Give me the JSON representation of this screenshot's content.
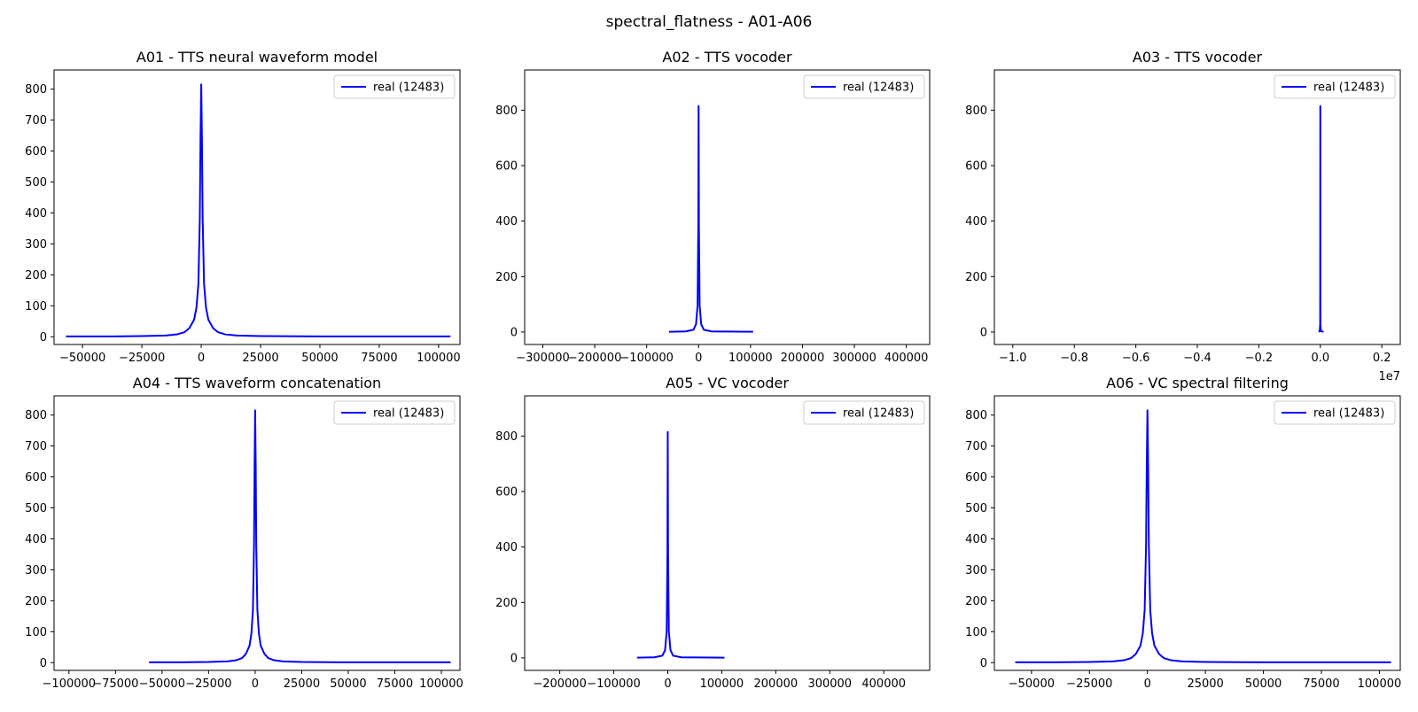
{
  "figure": {
    "suptitle": "spectral_flatness - A01-A06"
  },
  "chart_data": [
    {
      "type": "line",
      "title": "A01 - TTS neural waveform model",
      "xlim": [
        -62000,
        109000
      ],
      "ylim": [
        -25,
        862
      ],
      "xticks": [
        -50000,
        -25000,
        0,
        25000,
        50000,
        75000,
        100000
      ],
      "xticklabels": [
        "−50000",
        "−25000",
        "0",
        "25000",
        "50000",
        "75000",
        "100000"
      ],
      "yticks": [
        0,
        100,
        200,
        300,
        400,
        500,
        600,
        700,
        800
      ],
      "yticklabels": [
        "0",
        "100",
        "200",
        "300",
        "400",
        "500",
        "600",
        "700",
        "800"
      ],
      "offset_text": "",
      "legend": {
        "position": "upper right",
        "entries": [
          "real (12483)"
        ]
      },
      "series": [
        {
          "name": "real (12483)",
          "color": "#0000ff",
          "x": [
            -57000,
            -40000,
            -25000,
            -15000,
            -10000,
            -7000,
            -5000,
            -3000,
            -2000,
            -1200,
            -600,
            -300,
            0,
            300,
            600,
            1200,
            2000,
            3000,
            5000,
            7000,
            10000,
            15000,
            25000,
            50000,
            75000,
            105000
          ],
          "y": [
            1,
            1,
            2,
            4,
            8,
            15,
            28,
            55,
            95,
            170,
            380,
            640,
            815,
            640,
            380,
            170,
            95,
            55,
            28,
            15,
            8,
            4,
            2,
            1,
            1,
            1
          ]
        }
      ]
    },
    {
      "type": "line",
      "title": "A02 - TTS vocoder",
      "xlim": [
        -335000,
        445000
      ],
      "ylim": [
        -45,
        945
      ],
      "xticks": [
        -300000,
        -200000,
        -100000,
        0,
        100000,
        200000,
        300000,
        400000
      ],
      "xticklabels": [
        "−300000",
        "−200000",
        "−100000",
        "0",
        "100000",
        "200000",
        "300000",
        "400000"
      ],
      "yticks": [
        0,
        200,
        400,
        600,
        800
      ],
      "yticklabels": [
        "0",
        "200",
        "400",
        "600",
        "800"
      ],
      "offset_text": "",
      "legend": {
        "position": "upper right",
        "entries": [
          "real (12483)"
        ]
      },
      "series": [
        {
          "name": "real (12483)",
          "color": "#0000ff",
          "x": [
            -57000,
            -25000,
            -10000,
            -5000,
            -2000,
            -600,
            0,
            600,
            2000,
            5000,
            10000,
            25000,
            105000
          ],
          "y": [
            1,
            2,
            8,
            28,
            95,
            380,
            815,
            380,
            95,
            28,
            8,
            2,
            1
          ]
        }
      ]
    },
    {
      "type": "line",
      "title": "A03 - TTS vocoder",
      "xlim": [
        -10600000,
        2600000
      ],
      "ylim": [
        -45,
        945
      ],
      "xticks": [
        -10000000,
        -8000000,
        -6000000,
        -4000000,
        -2000000,
        0,
        2000000
      ],
      "xticklabels": [
        "−1.0",
        "−0.8",
        "−0.6",
        "−0.4",
        "−0.2",
        "0.0",
        "0.2"
      ],
      "yticks": [
        0,
        200,
        400,
        600,
        800
      ],
      "yticklabels": [
        "0",
        "200",
        "400",
        "600",
        "800"
      ],
      "offset_text": "1e7",
      "legend": {
        "position": "upper right",
        "entries": [
          "real (12483)"
        ]
      },
      "series": [
        {
          "name": "real (12483)",
          "color": "#0000ff",
          "x": [
            -57000,
            -20000,
            -5000,
            0,
            5000,
            20000,
            105000
          ],
          "y": [
            1,
            3,
            28,
            815,
            28,
            3,
            1
          ]
        }
      ]
    },
    {
      "type": "line",
      "title": "A04 - TTS waveform concatenation",
      "xlim": [
        -108000,
        110000
      ],
      "ylim": [
        -25,
        862
      ],
      "xticks": [
        -100000,
        -75000,
        -50000,
        -25000,
        0,
        25000,
        50000,
        75000,
        100000
      ],
      "xticklabels": [
        "−100000",
        "−75000",
        "−50000",
        "−25000",
        "0",
        "25000",
        "50000",
        "75000",
        "100000"
      ],
      "yticks": [
        0,
        100,
        200,
        300,
        400,
        500,
        600,
        700,
        800
      ],
      "yticklabels": [
        "0",
        "100",
        "200",
        "300",
        "400",
        "500",
        "600",
        "700",
        "800"
      ],
      "offset_text": "",
      "legend": {
        "position": "upper right",
        "entries": [
          "real (12483)"
        ]
      },
      "series": [
        {
          "name": "real (12483)",
          "color": "#0000ff",
          "x": [
            -57000,
            -40000,
            -25000,
            -15000,
            -10000,
            -7000,
            -5000,
            -3000,
            -2000,
            -1200,
            -600,
            -300,
            0,
            300,
            600,
            1200,
            2000,
            3000,
            5000,
            7000,
            10000,
            15000,
            25000,
            50000,
            75000,
            105000
          ],
          "y": [
            1,
            1,
            2,
            4,
            8,
            15,
            28,
            55,
            95,
            170,
            380,
            640,
            815,
            640,
            380,
            170,
            95,
            55,
            28,
            15,
            8,
            4,
            2,
            1,
            1,
            1
          ]
        }
      ]
    },
    {
      "type": "line",
      "title": "A05 - VC vocoder",
      "xlim": [
        -265000,
        485000
      ],
      "ylim": [
        -45,
        945
      ],
      "xticks": [
        -200000,
        -100000,
        0,
        100000,
        200000,
        300000,
        400000
      ],
      "xticklabels": [
        "−200000",
        "−100000",
        "0",
        "100000",
        "200000",
        "300000",
        "400000"
      ],
      "yticks": [
        0,
        200,
        400,
        600,
        800
      ],
      "yticklabels": [
        "0",
        "200",
        "400",
        "600",
        "800"
      ],
      "offset_text": "",
      "legend": {
        "position": "upper right",
        "entries": [
          "real (12483)"
        ]
      },
      "series": [
        {
          "name": "real (12483)",
          "color": "#0000ff",
          "x": [
            -57000,
            -25000,
            -10000,
            -5000,
            -2000,
            -600,
            0,
            600,
            2000,
            5000,
            10000,
            25000,
            105000
          ],
          "y": [
            1,
            2,
            8,
            28,
            95,
            380,
            815,
            380,
            95,
            28,
            8,
            2,
            1
          ]
        }
      ]
    },
    {
      "type": "line",
      "title": "A06 - VC spectral filtering",
      "xlim": [
        -66000,
        109000
      ],
      "ylim": [
        -25,
        862
      ],
      "xticks": [
        -50000,
        -25000,
        0,
        25000,
        50000,
        75000,
        100000
      ],
      "xticklabels": [
        "−50000",
        "−25000",
        "0",
        "25000",
        "50000",
        "75000",
        "100000"
      ],
      "yticks": [
        0,
        100,
        200,
        300,
        400,
        500,
        600,
        700,
        800
      ],
      "yticklabels": [
        "0",
        "100",
        "200",
        "300",
        "400",
        "500",
        "600",
        "700",
        "800"
      ],
      "offset_text": "",
      "legend": {
        "position": "upper right",
        "entries": [
          "real (12483)"
        ]
      },
      "series": [
        {
          "name": "real (12483)",
          "color": "#0000ff",
          "x": [
            -57000,
            -40000,
            -25000,
            -15000,
            -10000,
            -7000,
            -5000,
            -3000,
            -2000,
            -1200,
            -600,
            -300,
            0,
            300,
            600,
            1200,
            2000,
            3000,
            5000,
            7000,
            10000,
            15000,
            25000,
            50000,
            75000,
            105000
          ],
          "y": [
            1,
            1,
            2,
            4,
            8,
            15,
            28,
            55,
            95,
            170,
            380,
            640,
            815,
            640,
            380,
            170,
            95,
            55,
            28,
            15,
            8,
            4,
            2,
            1,
            1,
            1
          ]
        }
      ]
    }
  ]
}
